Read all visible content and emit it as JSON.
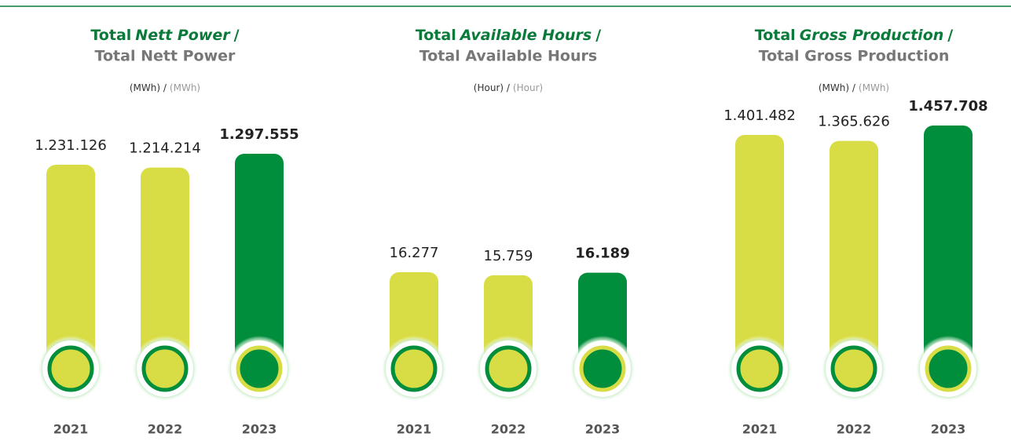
{
  "chart_data": [
    {
      "type": "bar",
      "title": [
        "Total",
        "Nett Power",
        "/"
      ],
      "subtitle": "Total Nett Power",
      "unit": [
        "(MWh) /",
        "(MWh)"
      ],
      "categories": [
        "2021",
        "2022",
        "2023"
      ],
      "values": [
        1231126,
        1214214,
        1297555
      ],
      "value_labels": [
        "1.231.126",
        "1.214.214",
        "1.297.555"
      ],
      "colors": [
        "#d9dd45",
        "#d9dd45",
        "#008d3c"
      ]
    },
    {
      "type": "bar",
      "title": [
        "Total",
        "Available Hours",
        "/"
      ],
      "subtitle": "Total Available Hours",
      "unit": [
        "(Hour) /",
        "(Hour)"
      ],
      "categories": [
        "2021",
        "2022",
        "2023"
      ],
      "values": [
        16277,
        15759,
        16189
      ],
      "value_labels": [
        "16.277",
        "15.759",
        "16.189"
      ],
      "colors": [
        "#d9dd45",
        "#d9dd45",
        "#008d3c"
      ]
    },
    {
      "type": "bar",
      "title": [
        "Total",
        "Gross Production",
        "/"
      ],
      "subtitle": "Total Gross Production",
      "unit": [
        "(MWh) /",
        "(MWh)"
      ],
      "categories": [
        "2021",
        "2022",
        "2023"
      ],
      "values": [
        1401482,
        1365626,
        1457708
      ],
      "value_labels": [
        "1.401.482",
        "1.365.626",
        "1.457.708"
      ],
      "colors": [
        "#d9dd45",
        "#d9dd45",
        "#008d3c"
      ]
    }
  ]
}
